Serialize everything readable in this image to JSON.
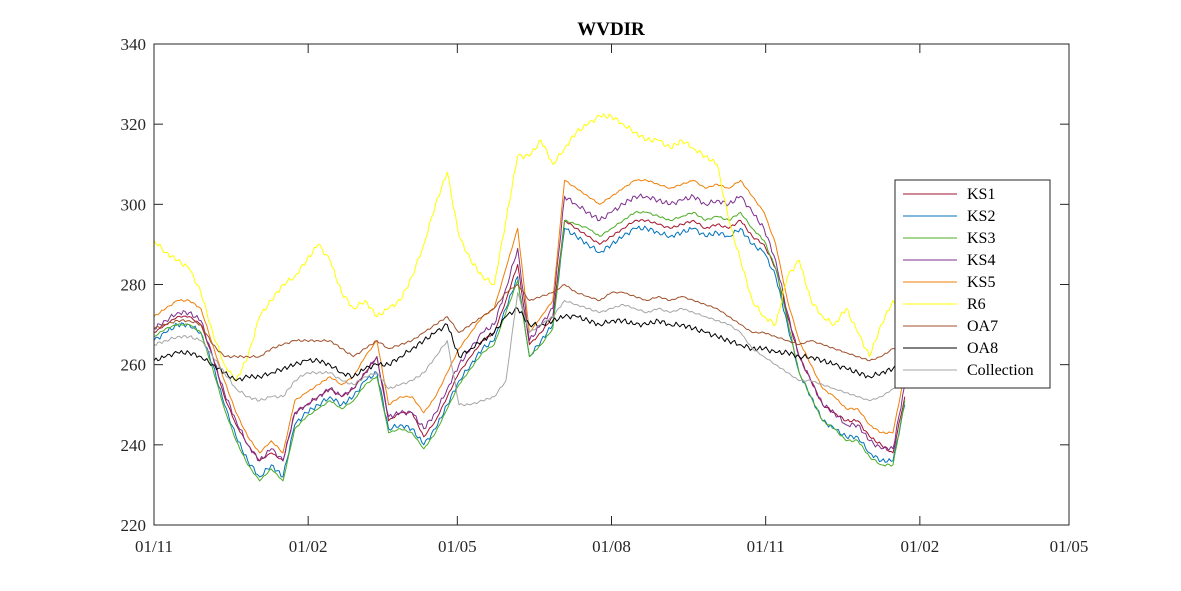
{
  "chart_data": {
    "type": "line",
    "title": "WVDIR",
    "xlabel": "",
    "ylabel": "",
    "ylim": [
      220,
      340
    ],
    "yticks": [
      220,
      240,
      260,
      280,
      300,
      320,
      340
    ],
    "xlim": [
      "2020-11-01",
      "2022-05-01"
    ],
    "xticks": [
      {
        "date": "2020-11-01",
        "label": "01/11"
      },
      {
        "date": "2021-02-01",
        "label": "01/02"
      },
      {
        "date": "2021-05-01",
        "label": "01/05"
      },
      {
        "date": "2021-08-01",
        "label": "01/08"
      },
      {
        "date": "2021-11-01",
        "label": "01/11"
      },
      {
        "date": "2022-02-01",
        "label": "01/02"
      },
      {
        "date": "2022-05-01",
        "label": "01/05"
      }
    ],
    "grid": false,
    "legend": "right",
    "x": [
      "2020-11-01",
      "2020-11-08",
      "2020-11-15",
      "2020-11-22",
      "2020-11-29",
      "2020-12-06",
      "2020-12-13",
      "2020-12-20",
      "2020-12-27",
      "2021-01-03",
      "2021-01-10",
      "2021-01-17",
      "2021-01-24",
      "2021-01-31",
      "2021-02-07",
      "2021-02-14",
      "2021-02-21",
      "2021-02-28",
      "2021-03-07",
      "2021-03-14",
      "2021-03-21",
      "2021-03-28",
      "2021-04-04",
      "2021-04-11",
      "2021-04-18",
      "2021-04-25",
      "2021-05-02",
      "2021-05-09",
      "2021-05-16",
      "2021-05-23",
      "2021-05-30",
      "2021-06-06",
      "2021-06-13",
      "2021-06-20",
      "2021-06-27",
      "2021-07-04",
      "2021-07-11",
      "2021-07-18",
      "2021-07-25",
      "2021-08-01",
      "2021-08-08",
      "2021-08-15",
      "2021-08-22",
      "2021-08-29",
      "2021-09-05",
      "2021-09-12",
      "2021-09-19",
      "2021-09-26",
      "2021-10-03",
      "2021-10-10",
      "2021-10-17",
      "2021-10-24",
      "2021-10-31",
      "2021-11-07",
      "2021-11-14",
      "2021-11-21",
      "2021-11-28",
      "2021-12-05",
      "2021-12-12",
      "2021-12-19",
      "2021-12-26",
      "2022-01-02",
      "2022-01-09",
      "2022-01-16",
      "2022-01-23"
    ],
    "series": [
      {
        "name": "KS1",
        "color": "#A2142F",
        "values": [
          268,
          270,
          272,
          272,
          270,
          262,
          252,
          245,
          240,
          236,
          238,
          236,
          248,
          250,
          252,
          254,
          252,
          254,
          258,
          262,
          246,
          248,
          248,
          242,
          246,
          252,
          258,
          262,
          266,
          268,
          276,
          285,
          265,
          268,
          272,
          296,
          294,
          292,
          290,
          292,
          294,
          296,
          296,
          295,
          294,
          295,
          296,
          294,
          295,
          294,
          296,
          292,
          290,
          284,
          272,
          262,
          256,
          250,
          248,
          246,
          246,
          242,
          240,
          238,
          252
        ]
      },
      {
        "name": "KS2",
        "color": "#0072BD",
        "values": [
          266,
          268,
          270,
          270,
          268,
          260,
          250,
          242,
          236,
          232,
          235,
          232,
          245,
          248,
          250,
          252,
          250,
          252,
          256,
          258,
          244,
          245,
          244,
          240,
          244,
          250,
          256,
          260,
          264,
          266,
          274,
          282,
          262,
          266,
          270,
          294,
          292,
          290,
          288,
          290,
          292,
          294,
          294,
          293,
          292,
          293,
          294,
          292,
          293,
          292,
          294,
          290,
          288,
          282,
          270,
          258,
          252,
          246,
          244,
          242,
          242,
          238,
          236,
          236,
          250
        ]
      },
      {
        "name": "KS3",
        "color": "#4DAC26",
        "values": [
          267,
          269,
          270,
          270,
          268,
          259,
          249,
          241,
          235,
          231,
          234,
          231,
          244,
          247,
          249,
          251,
          249,
          251,
          255,
          257,
          243,
          244,
          243,
          239,
          243,
          249,
          255,
          259,
          263,
          265,
          273,
          281,
          262,
          265,
          269,
          296,
          295,
          294,
          292,
          294,
          296,
          298,
          298,
          297,
          296,
          297,
          298,
          296,
          297,
          296,
          298,
          294,
          291,
          284,
          271,
          258,
          252,
          246,
          244,
          241,
          241,
          237,
          235,
          235,
          251
        ]
      },
      {
        "name": "KS4",
        "color": "#7E2F8E",
        "values": [
          269,
          271,
          273,
          273,
          271,
          262,
          253,
          246,
          240,
          236,
          239,
          236,
          248,
          250,
          252,
          254,
          252,
          254,
          258,
          262,
          247,
          248,
          248,
          244,
          248,
          254,
          260,
          264,
          268,
          270,
          279,
          289,
          266,
          270,
          274,
          302,
          300,
          298,
          296,
          298,
          300,
          302,
          302,
          301,
          300,
          301,
          302,
          300,
          301,
          300,
          302,
          298,
          294,
          286,
          273,
          262,
          256,
          250,
          248,
          245,
          245,
          241,
          239,
          239,
          255
        ]
      },
      {
        "name": "KS5",
        "color": "#F07F09",
        "values": [
          272,
          274,
          276,
          276,
          274,
          265,
          256,
          248,
          242,
          238,
          241,
          238,
          251,
          253,
          255,
          257,
          255,
          257,
          262,
          266,
          250,
          252,
          252,
          248,
          252,
          258,
          264,
          268,
          272,
          274,
          284,
          294,
          268,
          272,
          276,
          306,
          304,
          302,
          300,
          302,
          304,
          306,
          306,
          305,
          304,
          305,
          306,
          304,
          305,
          304,
          306,
          302,
          298,
          290,
          276,
          266,
          260,
          254,
          252,
          249,
          249,
          245,
          243,
          243,
          258
        ]
      },
      {
        "name": "R6",
        "color": "#FFFF00",
        "values": [
          291,
          288,
          286,
          284,
          278,
          268,
          260,
          256,
          262,
          272,
          276,
          280,
          282,
          286,
          290,
          286,
          278,
          274,
          276,
          272,
          274,
          276,
          282,
          290,
          300,
          308,
          292,
          286,
          282,
          280,
          296,
          312,
          312,
          316,
          310,
          314,
          318,
          320,
          322,
          322,
          320,
          318,
          316,
          316,
          314,
          316,
          314,
          312,
          310,
          296,
          286,
          276,
          272,
          270,
          282,
          286,
          276,
          272,
          270,
          274,
          268,
          262,
          270,
          276,
          272
        ]
      },
      {
        "name": "OA7",
        "color": "#A0522D",
        "values": [
          269,
          270,
          271,
          271,
          270,
          265,
          262,
          262,
          262,
          262,
          264,
          265,
          266,
          266,
          266,
          266,
          264,
          262,
          264,
          266,
          264,
          265,
          266,
          268,
          270,
          272,
          268,
          270,
          272,
          274,
          278,
          280,
          276,
          277,
          278,
          280,
          278,
          277,
          276,
          278,
          278,
          277,
          276,
          277,
          276,
          277,
          276,
          275,
          274,
          272,
          270,
          268,
          268,
          267,
          266,
          265,
          266,
          265,
          264,
          263,
          262,
          261,
          262,
          264,
          265
        ]
      },
      {
        "name": "OA8",
        "color": "#000000",
        "values": [
          261,
          262,
          263,
          263,
          262,
          260,
          258,
          256,
          257,
          257,
          258,
          259,
          260,
          261,
          261,
          260,
          258,
          257,
          259,
          260,
          260,
          262,
          264,
          266,
          268,
          270,
          262,
          264,
          266,
          268,
          272,
          274,
          270,
          270,
          271,
          272,
          272,
          271,
          270,
          271,
          271,
          270,
          270,
          271,
          270,
          270,
          269,
          268,
          267,
          266,
          265,
          264,
          264,
          263,
          263,
          262,
          262,
          261,
          260,
          259,
          258,
          257,
          258,
          259,
          260
        ]
      },
      {
        "name": "Collection",
        "color": "#A6A6A6",
        "values": [
          265,
          266,
          267,
          267,
          266,
          262,
          258,
          254,
          252,
          251,
          252,
          252,
          256,
          258,
          258,
          258,
          256,
          255,
          257,
          258,
          254,
          255,
          256,
          258,
          262,
          266,
          250,
          250,
          251,
          252,
          256,
          278,
          268,
          270,
          272,
          276,
          275,
          274,
          273,
          274,
          275,
          274,
          273,
          274,
          273,
          274,
          273,
          272,
          271,
          270,
          268,
          264,
          262,
          260,
          258,
          256,
          256,
          255,
          254,
          253,
          252,
          251,
          252,
          254,
          256
        ]
      }
    ]
  }
}
